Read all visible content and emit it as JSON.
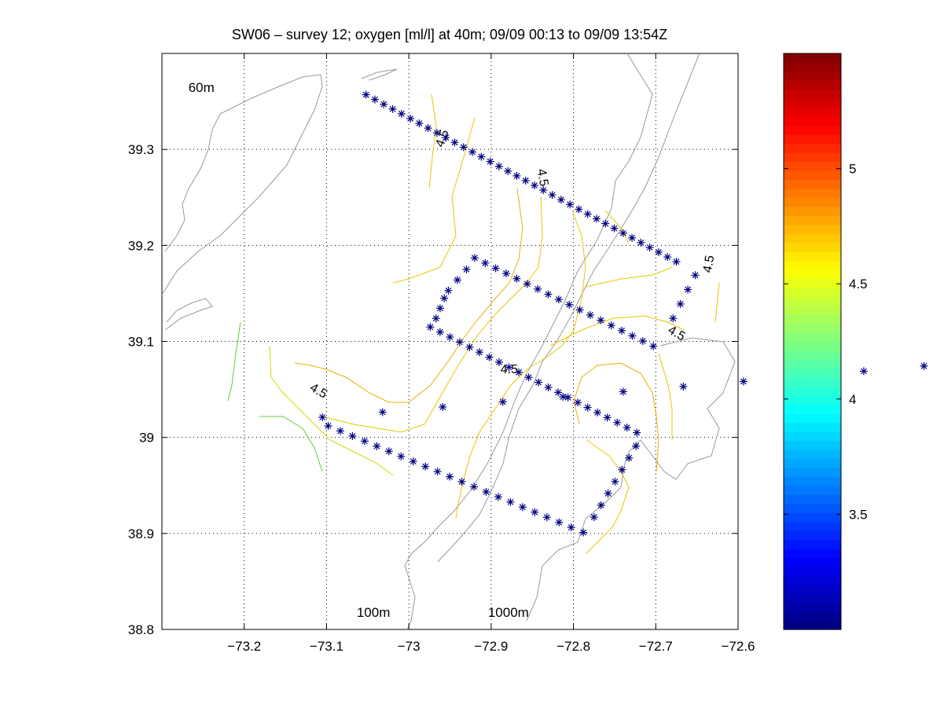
{
  "figure": {
    "title": "SW06 – survey 12; oxygen [ml/l] at 40m; 09/09 00:13 to 09/09 13:54Z"
  },
  "chart_data": {
    "type": "scatter",
    "title": "SW06 – survey 12; oxygen [ml/l] at 40m; 09/09 00:13 to 09/09 13:54Z",
    "xlabel": "",
    "ylabel": "",
    "xlim": [
      -73.3,
      -72.6
    ],
    "ylim": [
      38.8,
      39.4
    ],
    "x_ticks": [
      -73.2,
      -73.1,
      -73.0,
      -72.9,
      -72.8,
      -72.7,
      -72.6
    ],
    "x_tick_labels": [
      "−73.2",
      "−73.1",
      "−73",
      "−72.9",
      "−72.8",
      "−72.7",
      "−72.6"
    ],
    "y_ticks": [
      38.8,
      38.9,
      39.0,
      39.1,
      39.2,
      39.3
    ],
    "y_tick_labels": [
      "38.8",
      "38.9",
      "39",
      "39.1",
      "39.2",
      "39.3"
    ],
    "grid": true,
    "grid_style": "dotted",
    "marker": "*",
    "marker_color": "#000080",
    "stations": [
      {
        "name": "line-1",
        "start": [
          -73.052,
          39.357
        ],
        "end": [
          -72.675,
          39.183
        ],
        "count": 36
      },
      {
        "name": "line-2",
        "start": [
          -72.652,
          39.169
        ],
        "end": [
          -72.679,
          39.124
        ],
        "count": 4
      },
      {
        "name": "line-3",
        "start": [
          -72.92,
          39.187
        ],
        "end": [
          -72.703,
          39.095
        ],
        "count": 18
      },
      {
        "name": "line-4",
        "start": [
          -72.93,
          39.175
        ],
        "end": [
          -72.952,
          39.153
        ],
        "count": 3
      },
      {
        "name": "line-5",
        "start": [
          -72.957,
          39.145
        ],
        "end": [
          -72.967,
          39.124
        ],
        "count": 3
      },
      {
        "name": "line-6",
        "start": [
          -72.974,
          39.115
        ],
        "end": [
          -72.723,
          39.005
        ],
        "count": 22
      },
      {
        "name": "line-7",
        "start": [
          -72.228,
          39.085
        ],
        "end": [
          -73.105,
          39.021
        ],
        "count": 13
      },
      {
        "name": "line-8",
        "start": [
          -73.098,
          39.012
        ],
        "end": [
          -72.788,
          38.901
        ],
        "count": 22
      },
      {
        "name": "line-9",
        "start": [
          -72.775,
          38.917
        ],
        "end": [
          -72.724,
          38.991
        ],
        "count": 7
      }
    ],
    "contour_labels": [
      {
        "text": "4.5",
        "x": -72.955,
        "y": 39.31,
        "rotate": -70
      },
      {
        "text": "4.5",
        "x": -72.842,
        "y": 39.27,
        "rotate": 80
      },
      {
        "text": "4.5",
        "x": -72.631,
        "y": 39.18,
        "rotate": -80
      },
      {
        "text": "4.5",
        "x": -72.677,
        "y": 39.105,
        "rotate": 30
      },
      {
        "text": "4.5",
        "x": -72.878,
        "y": 39.067,
        "rotate": 0
      },
      {
        "text": "4.5",
        "x": -73.112,
        "y": 39.045,
        "rotate": 30
      }
    ],
    "depth_labels": [
      {
        "text": "60m",
        "x": -73.252,
        "y": 39.36
      },
      {
        "text": "100m",
        "x": -73.043,
        "y": 38.813
      },
      {
        "text": "1000m",
        "x": -72.879,
        "y": 38.813
      }
    ],
    "colorbar": {
      "range": [
        3.0,
        5.5
      ],
      "ticks": [
        3.5,
        4.0,
        4.5,
        5.0
      ],
      "tick_labels": [
        "3.5",
        "4",
        "4.5",
        "5"
      ],
      "colormap": "jet"
    }
  }
}
